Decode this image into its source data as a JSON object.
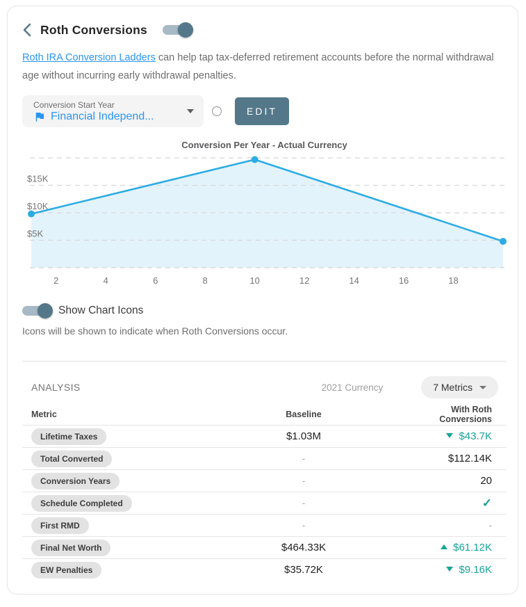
{
  "header": {
    "title": "Roth Conversions",
    "toggle_on": true
  },
  "description": {
    "link_text": "Roth IRA Conversion Ladders",
    "rest": " can help tap tax-deferred retirement accounts before the normal withdrawal age without incurring early withdrawal penalties."
  },
  "controls": {
    "select_label": "Conversion Start Year",
    "select_value": "Financial Independ...",
    "edit_label": "EDIT"
  },
  "chart_data": {
    "type": "area",
    "title": "Conversion Per Year - Actual Currency",
    "points": [
      {
        "x": 1,
        "y": 9800
      },
      {
        "x": 10,
        "y": 19700
      },
      {
        "x": 20,
        "y": 4800
      }
    ],
    "x_ticks": [
      2,
      4,
      6,
      8,
      10,
      12,
      14,
      16,
      18
    ],
    "y_ticks": [
      {
        "value": 5000,
        "label": "$5K"
      },
      {
        "value": 10000,
        "label": "$10K"
      },
      {
        "value": 15000,
        "label": "$15K"
      }
    ],
    "gridlines": [
      0,
      5000,
      10000,
      15000,
      20000
    ],
    "xlim": [
      1,
      20
    ],
    "ylim": [
      0,
      20900
    ],
    "grid": "dashed",
    "legend": false,
    "line_color": "#2dace4",
    "fill_color": "#e3f3fc"
  },
  "chart_icons": {
    "label": "Show Chart Icons",
    "description": "Icons will be shown to indicate when Roth Conversions occur.",
    "toggle_on": true
  },
  "analysis": {
    "section_label": "ANALYSIS",
    "currency_note": "2021 Currency",
    "metrics_selector": "7 Metrics",
    "columns": [
      "Metric",
      "Baseline",
      "With Roth Conversions"
    ],
    "check_icon": "✓",
    "rows": [
      {
        "metric": "Lifetime Taxes",
        "baseline": "$1.03M",
        "with_roth": "$43.7K",
        "change": "down"
      },
      {
        "metric": "Total Converted",
        "baseline": "-",
        "with_roth": "$112.14K",
        "change": "none"
      },
      {
        "metric": "Conversion Years",
        "baseline": "-",
        "with_roth": "20",
        "change": "none"
      },
      {
        "metric": "Schedule Completed",
        "baseline": "-",
        "with_roth": "",
        "change": "check"
      },
      {
        "metric": "First RMD",
        "baseline": "-",
        "with_roth": "-",
        "change": "none"
      },
      {
        "metric": "Final Net Worth",
        "baseline": "$464.33K",
        "with_roth": "$61.12K",
        "change": "up"
      },
      {
        "metric": "EW Penalties",
        "baseline": "$35.72K",
        "with_roth": "$9.16K",
        "change": "down"
      }
    ]
  },
  "colors": {
    "accent_slate": "#54788a",
    "link_blue": "#2b95f0",
    "chart_line": "#2dace4",
    "chart_fill": "#e3f3fc",
    "positive_teal": "#17a398",
    "pill_gray": "#e2e2e2"
  }
}
